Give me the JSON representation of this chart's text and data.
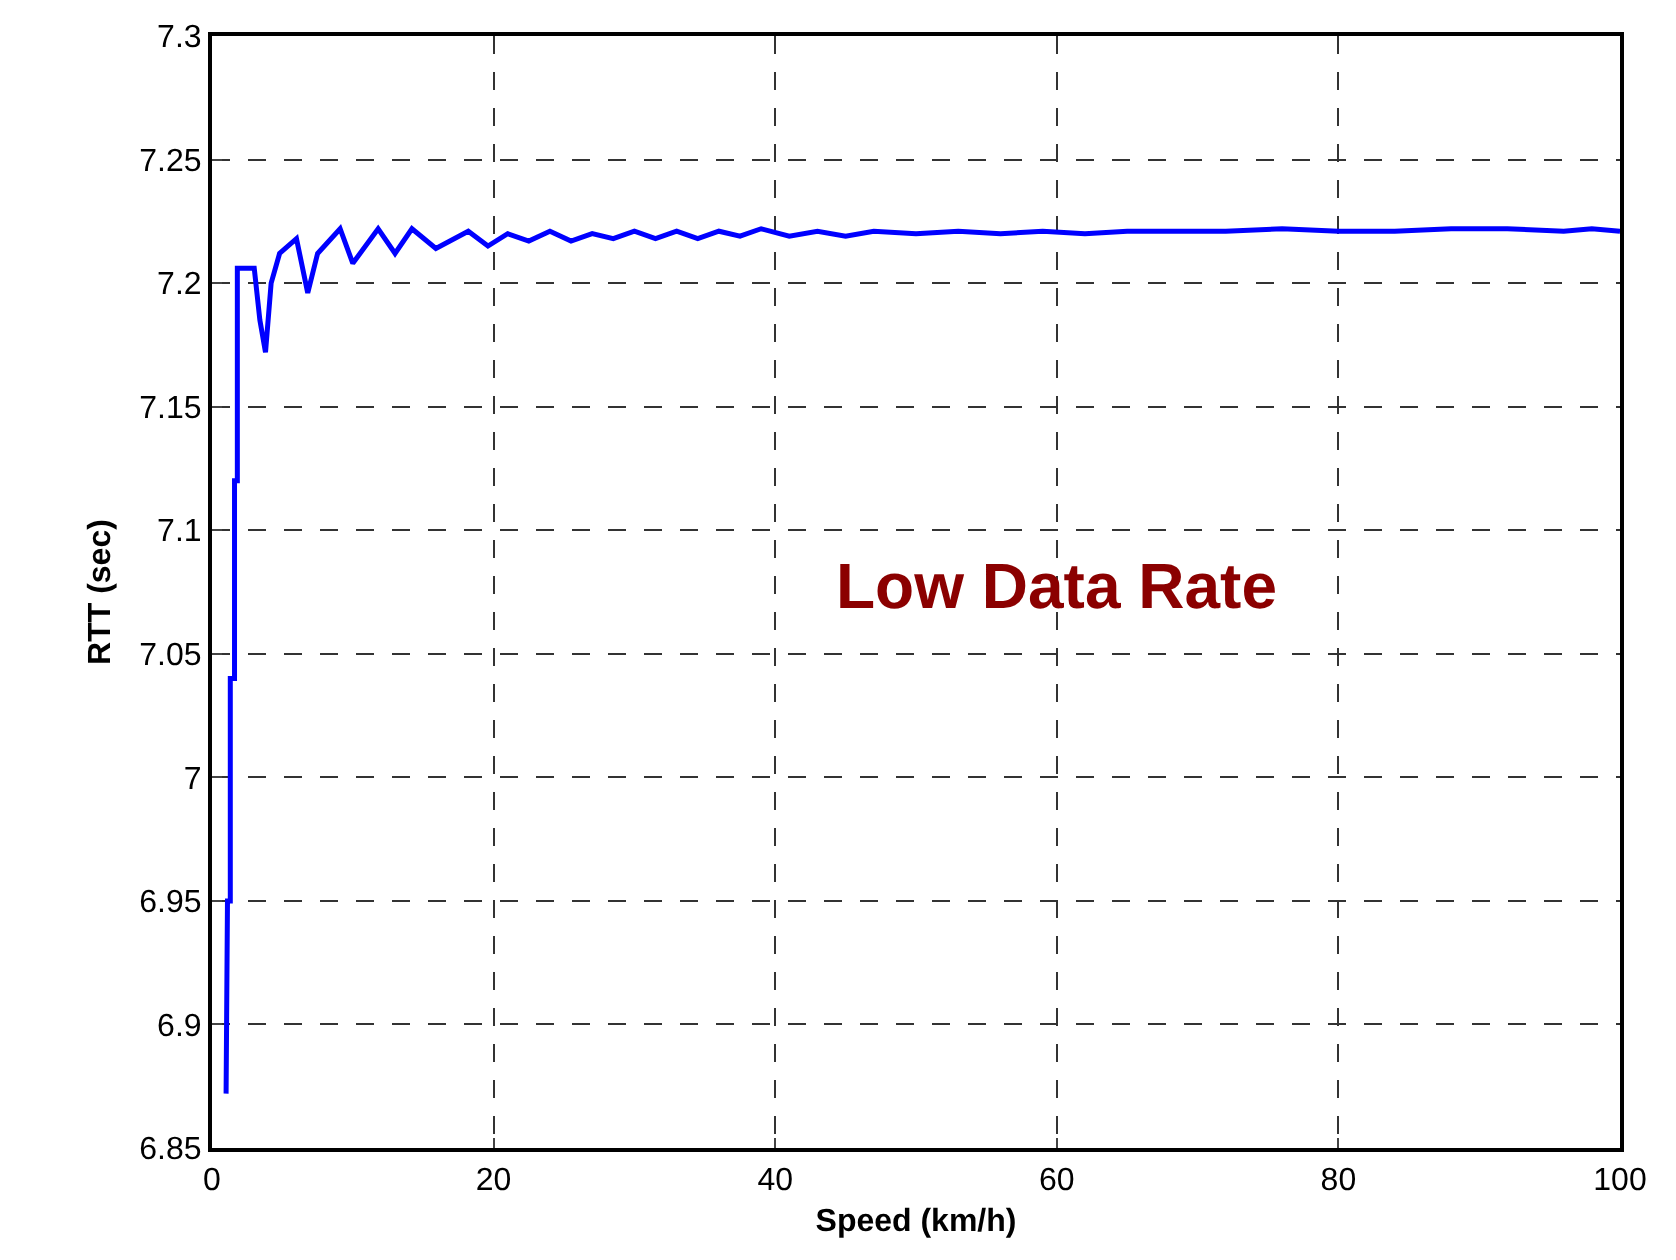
{
  "chart_data": {
    "type": "line",
    "xlabel": "Speed (km/h)",
    "ylabel": "RTT (sec)",
    "annotations": [
      "Low Data Rate"
    ],
    "x": [
      1,
      1.1,
      1.3,
      1.3,
      1.6,
      1.6,
      1.8,
      1.8,
      2.2,
      3,
      3.4,
      3.8,
      4.2,
      4.8,
      6,
      6.8,
      7.5,
      9.1,
      10,
      11.8,
      13,
      14.2,
      15.9,
      18.2,
      19.6,
      21,
      22.5,
      24,
      25.5,
      27,
      28.5,
      30,
      31.5,
      33,
      34.5,
      36,
      37.5,
      39,
      41,
      43,
      45,
      47,
      50,
      53,
      56,
      59,
      62,
      65,
      68,
      72,
      76,
      80,
      84,
      88,
      92,
      96,
      98,
      100
    ],
    "series": [
      {
        "color": "#0000ff",
        "values": [
          6.872,
          6.95,
          6.95,
          7.04,
          7.04,
          7.12,
          7.12,
          7.206,
          7.206,
          7.206,
          7.185,
          7.172,
          7.2,
          7.212,
          7.218,
          7.196,
          7.212,
          7.222,
          7.208,
          7.222,
          7.212,
          7.222,
          7.214,
          7.221,
          7.215,
          7.22,
          7.217,
          7.221,
          7.217,
          7.22,
          7.218,
          7.221,
          7.218,
          7.221,
          7.218,
          7.221,
          7.219,
          7.222,
          7.219,
          7.221,
          7.219,
          7.221,
          7.22,
          7.221,
          7.22,
          7.221,
          7.22,
          7.221,
          7.221,
          7.221,
          7.222,
          7.221,
          7.221,
          7.222,
          7.222,
          7.221,
          7.222,
          7.221
        ]
      }
    ],
    "xlim": [
      0,
      100
    ],
    "xticks": [
      0,
      20,
      40,
      60,
      80,
      100
    ],
    "ylim": [
      6.85,
      7.3
    ],
    "yticks": [
      6.85,
      6.9,
      6.95,
      7,
      7.05,
      7.1,
      7.15,
      7.2,
      7.25,
      7.3
    ],
    "grid": true,
    "marker": "none",
    "line_style": "solid"
  }
}
